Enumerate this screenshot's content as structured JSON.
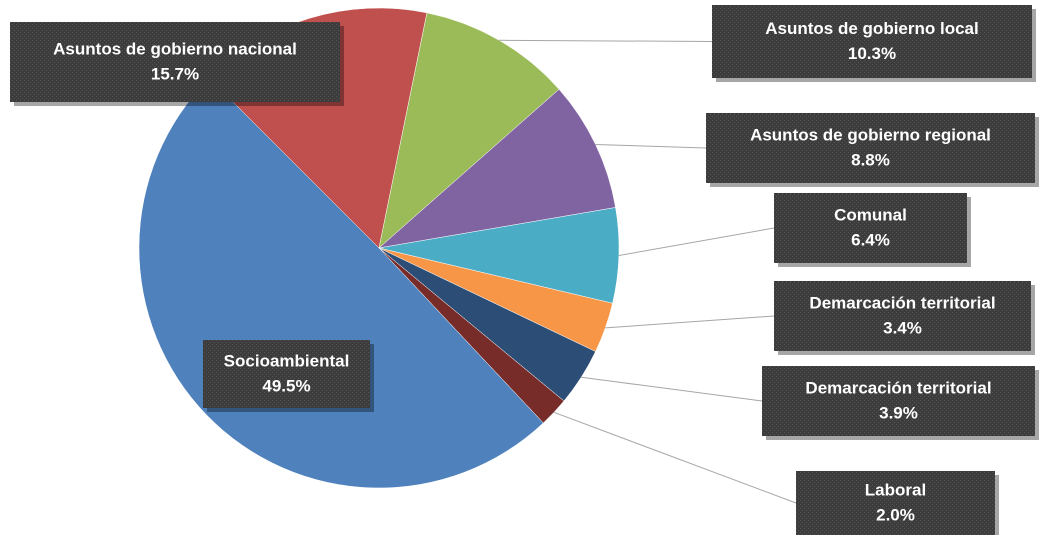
{
  "chart_data": {
    "type": "pie",
    "categories": [
      "Asuntos de gobierno nacional",
      "Asuntos de gobierno local",
      "Asuntos de gobierno regional",
      "Comunal",
      "Demarcación territorial",
      "Demarcación territorial",
      "Laboral",
      "Socioambiental"
    ],
    "values": [
      15.7,
      10.3,
      8.8,
      6.4,
      3.4,
      3.9,
      2.0,
      49.5
    ],
    "value_labels": [
      "15.7%",
      "10.3%",
      "8.8%",
      "6.4%",
      "3.4%",
      "3.9%",
      "2.0%",
      "49.5%"
    ],
    "colors": [
      "#c0504d",
      "#9bbb59",
      "#8064a2",
      "#4bacc6",
      "#f79646",
      "#2c4d75",
      "#772c2a",
      "#4f81bd"
    ]
  }
}
